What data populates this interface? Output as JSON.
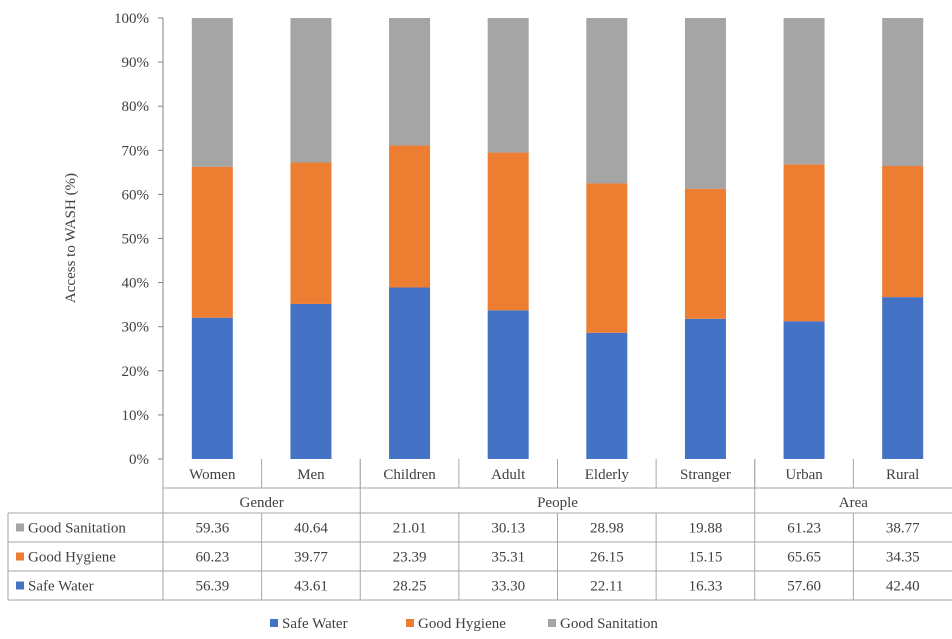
{
  "chart_data": {
    "type": "bar",
    "stacked": "percent",
    "ylabel": "Access to WASH (%)",
    "ylim": [
      0,
      100
    ],
    "yticks": [
      "0%",
      "10%",
      "20%",
      "30%",
      "40%",
      "50%",
      "60%",
      "70%",
      "80%",
      "90%",
      "100%"
    ],
    "categories": [
      "Women",
      "Men",
      "Children",
      "Adult",
      "Elderly",
      "Stranger",
      "Urban",
      "Rural"
    ],
    "groups": [
      {
        "label": "Gender",
        "categories": [
          "Women",
          "Men"
        ]
      },
      {
        "label": "People",
        "categories": [
          "Children",
          "Adult",
          "Elderly",
          "Stranger"
        ]
      },
      {
        "label": "Area",
        "categories": [
          "Urban",
          "Rural"
        ]
      }
    ],
    "series": [
      {
        "name": "Safe Water",
        "color": "#4472C4",
        "values": [
          56.39,
          43.61,
          28.25,
          33.3,
          22.11,
          16.33,
          57.6,
          42.4
        ],
        "labels": [
          "56.39",
          "43.61",
          "28.25",
          "33.30",
          "22.11",
          "16.33",
          "57.60",
          "42.40"
        ]
      },
      {
        "name": "Good Hygiene",
        "color": "#ED7D31",
        "values": [
          60.23,
          39.77,
          23.39,
          35.31,
          26.15,
          15.15,
          65.65,
          34.35
        ],
        "labels": [
          "60.23",
          "39.77",
          "23.39",
          "35.31",
          "26.15",
          "15.15",
          "65.65",
          "34.35"
        ]
      },
      {
        "name": "Good Sanitation",
        "color": "#A5A5A5",
        "values": [
          59.36,
          40.64,
          21.01,
          30.13,
          28.98,
          19.88,
          61.23,
          38.77
        ],
        "labels": [
          "59.36",
          "40.64",
          "21.01",
          "30.13",
          "28.98",
          "19.88",
          "61.23",
          "38.77"
        ]
      }
    ],
    "table_row_order": [
      "Good Sanitation",
      "Good Hygiene",
      "Safe Water"
    ],
    "legend": {
      "position": "bottom",
      "order": [
        "Safe Water",
        "Good Hygiene",
        "Good Sanitation"
      ]
    },
    "grid": false
  }
}
